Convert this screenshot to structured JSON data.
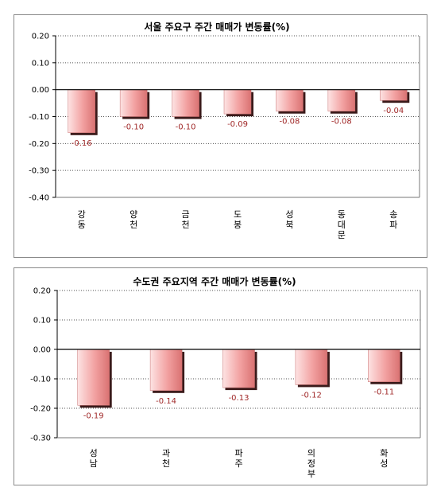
{
  "chart_data": [
    {
      "type": "bar",
      "title": "서울 주요구 주간 매매가 변동률(%)",
      "categories": [
        [
          "강",
          "동"
        ],
        [
          "양",
          "천"
        ],
        [
          "금",
          "천"
        ],
        [
          "도",
          "봉"
        ],
        [
          "성",
          "북"
        ],
        [
          "동",
          "대",
          "문"
        ],
        [
          "송",
          "파"
        ]
      ],
      "values": [
        -0.16,
        -0.1,
        -0.1,
        -0.09,
        -0.08,
        -0.08,
        -0.04
      ],
      "data_labels": [
        "-0.16",
        "-0.10",
        "-0.10",
        "-0.09",
        "-0.08",
        "-0.08",
        "-0.04"
      ],
      "ylim": [
        -0.4,
        0.2
      ],
      "yticks": [
        "0.20",
        "0.10",
        "0.00",
        "-0.10",
        "-0.20",
        "-0.30",
        "-0.40"
      ],
      "ytick_values": [
        0.2,
        0.1,
        0.0,
        -0.1,
        -0.2,
        -0.3,
        -0.4
      ],
      "grid": true,
      "bar_color": "#f2a0a0",
      "bar_shadow": "#3a1a1a",
      "xlabel": "",
      "ylabel": ""
    },
    {
      "type": "bar",
      "title": "수도권 주요지역 주간 매매가 변동률(%)",
      "categories": [
        [
          "성",
          "남"
        ],
        [
          "과",
          "천"
        ],
        [
          "파",
          "주"
        ],
        [
          "의",
          "정",
          "부"
        ],
        [
          "화",
          "성"
        ]
      ],
      "values": [
        -0.19,
        -0.14,
        -0.13,
        -0.12,
        -0.11
      ],
      "data_labels": [
        "-0.19",
        "-0.14",
        "-0.13",
        "-0.12",
        "-0.11"
      ],
      "ylim": [
        -0.3,
        0.2
      ],
      "yticks": [
        "0.20",
        "0.10",
        "0.00",
        "-0.10",
        "-0.20",
        "-0.30"
      ],
      "ytick_values": [
        0.2,
        0.1,
        0.0,
        -0.1,
        -0.2,
        -0.3
      ],
      "grid": true,
      "bar_color": "#f2a0a0",
      "bar_shadow": "#3a1a1a",
      "xlabel": "",
      "ylabel": ""
    }
  ]
}
